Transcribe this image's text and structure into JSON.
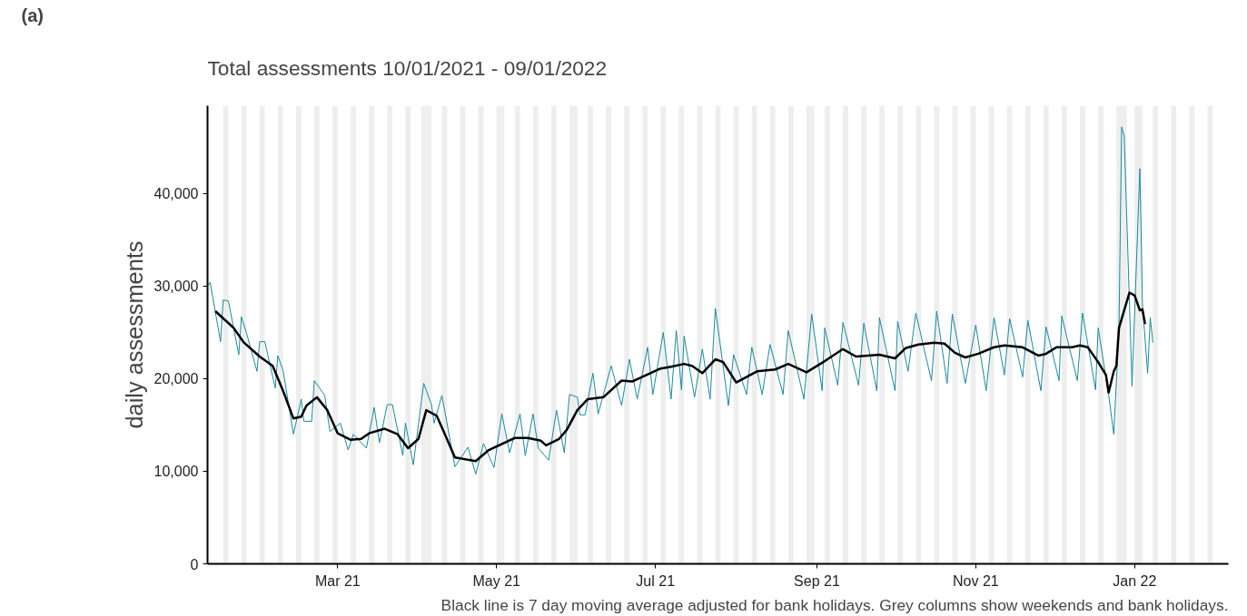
{
  "chart_data": {
    "type": "line",
    "title": "Total assessments 10/01/2021 - 09/01/2022",
    "ylabel": "daily assessments",
    "annotations": [
      "(a)",
      "Black line is 7 day moving average adjusted for bank holidays. Grey columns show weekends and bank holidays."
    ],
    "xlim": [
      "2021-01-10",
      "2022-02-06"
    ],
    "xticks": [
      {
        "value": "2021-03-01",
        "label": "Mar 21"
      },
      {
        "value": "2021-05-01",
        "label": "May 21"
      },
      {
        "value": "2021-07-01",
        "label": "Jul 21"
      },
      {
        "value": "2021-09-01",
        "label": "Sep 21"
      },
      {
        "value": "2021-11-01",
        "label": "Nov 21"
      },
      {
        "value": "2022-01-01",
        "label": "Jan 22"
      }
    ],
    "ylim": [
      0,
      49500
    ],
    "yticks": [
      0,
      {
        "value": 10000,
        "label": "10,000"
      },
      {
        "value": 20000,
        "label": "20,000"
      },
      {
        "value": 30000,
        "label": "30,000"
      },
      {
        "value": 40000,
        "label": "40,000"
      }
    ],
    "grid": false,
    "series": [
      {
        "color": "#1a8a9c",
        "x": [
          "2021-01-10",
          "2021-01-11",
          "2021-01-15",
          "2021-01-16",
          "2021-01-18",
          "2021-01-22",
          "2021-01-23",
          "2021-01-25",
          "2021-01-29",
          "2021-01-30",
          "2021-02-01",
          "2021-02-05",
          "2021-02-06",
          "2021-02-08",
          "2021-02-12",
          "2021-02-15",
          "2021-02-16",
          "2021-02-19",
          "2021-02-20",
          "2021-02-24",
          "2021-02-26",
          "2021-03-02",
          "2021-03-05",
          "2021-03-07",
          "2021-03-12",
          "2021-03-15",
          "2021-03-17",
          "2021-03-20",
          "2021-03-22",
          "2021-03-26",
          "2021-03-27",
          "2021-03-30",
          "2021-04-03",
          "2021-04-06",
          "2021-04-07",
          "2021-04-10",
          "2021-04-15",
          "2021-04-20",
          "2021-04-23",
          "2021-04-26",
          "2021-04-30",
          "2021-05-03",
          "2021-05-06",
          "2021-05-10",
          "2021-05-12",
          "2021-05-15",
          "2021-05-17",
          "2021-05-21",
          "2021-05-24",
          "2021-05-27",
          "2021-05-29",
          "2021-06-01",
          "2021-06-02",
          "2021-06-04",
          "2021-06-07",
          "2021-06-09",
          "2021-06-14",
          "2021-06-18",
          "2021-06-21",
          "2021-06-24",
          "2021-06-28",
          "2021-06-30",
          "2021-07-04",
          "2021-07-07",
          "2021-07-09",
          "2021-07-11",
          "2021-07-12",
          "2021-07-16",
          "2021-07-19",
          "2021-07-22",
          "2021-07-24",
          "2021-07-29",
          "2021-07-31",
          "2021-08-05",
          "2021-08-07",
          "2021-08-11",
          "2021-08-14",
          "2021-08-19",
          "2021-08-21",
          "2021-08-27",
          "2021-08-30",
          "2021-09-03",
          "2021-09-04",
          "2021-09-09",
          "2021-09-11",
          "2021-09-17",
          "2021-09-19",
          "2021-09-24",
          "2021-09-25",
          "2021-10-01",
          "2021-10-02",
          "2021-10-06",
          "2021-10-09",
          "2021-10-12",
          "2021-10-15",
          "2021-10-17",
          "2021-10-21",
          "2021-10-23",
          "2021-10-28",
          "2021-11-01",
          "2021-11-05",
          "2021-11-08",
          "2021-11-12",
          "2021-11-14",
          "2021-11-19",
          "2021-11-21",
          "2021-11-26",
          "2021-11-28",
          "2021-12-03",
          "2021-12-04",
          "2021-12-10",
          "2021-12-12",
          "2021-12-17",
          "2021-12-18",
          "2021-12-22",
          "2021-12-24",
          "2021-12-26",
          "2021-12-27",
          "2021-12-28",
          "2021-12-31",
          "2022-01-03",
          "2022-01-04",
          "2022-01-06",
          "2022-01-07",
          "2022-01-08"
        ],
        "values": [
          30000,
          30400,
          24000,
          28500,
          28400,
          22600,
          26700,
          24900,
          20800,
          24000,
          24000,
          19000,
          22500,
          20900,
          14000,
          17800,
          15400,
          15400,
          19800,
          18200,
          14300,
          15200,
          12300,
          14000,
          12500,
          16900,
          13100,
          17200,
          17200,
          11700,
          15200,
          10700,
          19500,
          17200,
          15200,
          18200,
          10500,
          12600,
          9700,
          13000,
          10400,
          16200,
          12000,
          16200,
          11700,
          16200,
          12500,
          11200,
          16600,
          12000,
          18300,
          18000,
          16100,
          16100,
          20600,
          16200,
          21400,
          17100,
          22100,
          17800,
          23400,
          18300,
          25000,
          17800,
          25200,
          18800,
          24600,
          18000,
          23200,
          17800,
          27600,
          17100,
          22600,
          18300,
          23400,
          18300,
          23700,
          18300,
          25200,
          17800,
          27000,
          18700,
          25500,
          19300,
          26100,
          19300,
          26000,
          18700,
          26600,
          18700,
          26200,
          20800,
          27100,
          23400,
          19800,
          27300,
          19500,
          27000,
          19500,
          25800,
          18700,
          26600,
          20400,
          26500,
          20200,
          26300,
          18700,
          25600,
          19800,
          26800,
          19800,
          27100,
          18800,
          25500,
          18300,
          14000,
          25500,
          47200,
          46200,
          19200,
          42700,
          28100,
          20600,
          26600,
          23900
        ]
      },
      {
        "color": "#000000",
        "x": [
          "2021-01-13",
          "2021-01-20",
          "2021-01-24",
          "2021-01-30",
          "2021-02-04",
          "2021-02-08",
          "2021-02-12",
          "2021-02-15",
          "2021-02-17",
          "2021-02-21",
          "2021-02-25",
          "2021-03-01",
          "2021-03-06",
          "2021-03-10",
          "2021-03-13",
          "2021-03-19",
          "2021-03-24",
          "2021-03-28",
          "2021-04-01",
          "2021-04-04",
          "2021-04-08",
          "2021-04-11",
          "2021-04-15",
          "2021-04-23",
          "2021-04-28",
          "2021-05-08",
          "2021-05-13",
          "2021-05-18",
          "2021-05-20",
          "2021-05-25",
          "2021-05-28",
          "2021-06-01",
          "2021-06-05",
          "2021-06-11",
          "2021-06-18",
          "2021-06-22",
          "2021-06-26",
          "2021-07-03",
          "2021-07-07",
          "2021-07-12",
          "2021-07-15",
          "2021-07-19",
          "2021-07-24",
          "2021-07-27",
          "2021-08-01",
          "2021-08-09",
          "2021-08-16",
          "2021-08-21",
          "2021-08-28",
          "2021-09-04",
          "2021-09-11",
          "2021-09-16",
          "2021-09-25",
          "2021-10-01",
          "2021-10-05",
          "2021-10-10",
          "2021-10-16",
          "2021-10-20",
          "2021-10-24",
          "2021-10-28",
          "2021-11-02",
          "2021-11-08",
          "2021-11-12",
          "2021-11-19",
          "2021-11-25",
          "2021-11-28",
          "2021-12-02",
          "2021-12-08",
          "2021-12-11",
          "2021-12-14",
          "2021-12-18",
          "2021-12-21",
          "2021-12-22",
          "2021-12-24",
          "2021-12-25",
          "2021-12-26",
          "2021-12-30",
          "2022-01-01",
          "2022-01-03",
          "2022-01-04",
          "2022-01-05"
        ],
        "values": [
          27300,
          25500,
          23900,
          22400,
          21400,
          18700,
          15700,
          15900,
          17100,
          18000,
          16600,
          14100,
          13400,
          13500,
          14100,
          14600,
          14000,
          12500,
          13500,
          16600,
          16000,
          14100,
          11500,
          11100,
          12300,
          13600,
          13600,
          13300,
          12800,
          13500,
          14500,
          16600,
          17800,
          18000,
          19800,
          19700,
          20200,
          21100,
          21300,
          21600,
          21400,
          20600,
          22100,
          21800,
          19600,
          20800,
          21000,
          21600,
          20700,
          21900,
          23200,
          22400,
          22600,
          22200,
          23300,
          23700,
          23900,
          23800,
          22800,
          22300,
          22700,
          23400,
          23600,
          23400,
          22500,
          22700,
          23400,
          23400,
          23600,
          23400,
          21800,
          20400,
          18500,
          20800,
          21400,
          25500,
          29300,
          29000,
          27400,
          27500,
          25900
        ]
      }
    ],
    "bands": [
      {
        "axis": "x",
        "from": "2021-01-16",
        "to": "2021-01-18",
        "color": "#e3e3e3"
      },
      {
        "axis": "x",
        "from": "2021-01-23",
        "to": "2021-01-25",
        "color": "#e3e3e3"
      },
      {
        "axis": "x",
        "from": "2021-01-30",
        "to": "2021-02-01",
        "color": "#e3e3e3"
      },
      {
        "axis": "x",
        "from": "2021-02-06",
        "to": "2021-02-08",
        "color": "#e3e3e3"
      },
      {
        "axis": "x",
        "from": "2021-02-13",
        "to": "2021-02-15",
        "color": "#e3e3e3"
      },
      {
        "axis": "x",
        "from": "2021-02-20",
        "to": "2021-02-22",
        "color": "#e3e3e3"
      },
      {
        "axis": "x",
        "from": "2021-02-27",
        "to": "2021-03-01",
        "color": "#e3e3e3"
      },
      {
        "axis": "x",
        "from": "2021-03-06",
        "to": "2021-03-08",
        "color": "#e3e3e3"
      },
      {
        "axis": "x",
        "from": "2021-03-13",
        "to": "2021-03-15",
        "color": "#e3e3e3"
      },
      {
        "axis": "x",
        "from": "2021-03-20",
        "to": "2021-03-22",
        "color": "#e3e3e3"
      },
      {
        "axis": "x",
        "from": "2021-03-27",
        "to": "2021-03-29",
        "color": "#e3e3e3"
      },
      {
        "axis": "x",
        "from": "2021-04-02",
        "to": "2021-04-03",
        "color": "#e3e3e3"
      },
      {
        "axis": "x",
        "from": "2021-04-03",
        "to": "2021-04-05",
        "color": "#e3e3e3"
      },
      {
        "axis": "x",
        "from": "2021-04-05",
        "to": "2021-04-06",
        "color": "#e3e3e3"
      },
      {
        "axis": "x",
        "from": "2021-04-10",
        "to": "2021-04-12",
        "color": "#e3e3e3"
      },
      {
        "axis": "x",
        "from": "2021-04-17",
        "to": "2021-04-19",
        "color": "#e3e3e3"
      },
      {
        "axis": "x",
        "from": "2021-04-24",
        "to": "2021-04-26",
        "color": "#e3e3e3"
      },
      {
        "axis": "x",
        "from": "2021-05-01",
        "to": "2021-05-03",
        "color": "#e3e3e3"
      },
      {
        "axis": "x",
        "from": "2021-05-03",
        "to": "2021-05-04",
        "color": "#e3e3e3"
      },
      {
        "axis": "x",
        "from": "2021-05-08",
        "to": "2021-05-10",
        "color": "#e3e3e3"
      },
      {
        "axis": "x",
        "from": "2021-05-15",
        "to": "2021-05-17",
        "color": "#e3e3e3"
      },
      {
        "axis": "x",
        "from": "2021-05-22",
        "to": "2021-05-24",
        "color": "#e3e3e3"
      },
      {
        "axis": "x",
        "from": "2021-05-29",
        "to": "2021-05-31",
        "color": "#e3e3e3"
      },
      {
        "axis": "x",
        "from": "2021-05-31",
        "to": "2021-06-01",
        "color": "#e3e3e3"
      },
      {
        "axis": "x",
        "from": "2021-06-05",
        "to": "2021-06-07",
        "color": "#e3e3e3"
      },
      {
        "axis": "x",
        "from": "2021-06-12",
        "to": "2021-06-14",
        "color": "#e3e3e3"
      },
      {
        "axis": "x",
        "from": "2021-06-19",
        "to": "2021-06-21",
        "color": "#e3e3e3"
      },
      {
        "axis": "x",
        "from": "2021-06-26",
        "to": "2021-06-28",
        "color": "#e3e3e3"
      },
      {
        "axis": "x",
        "from": "2021-07-03",
        "to": "2021-07-05",
        "color": "#e3e3e3"
      },
      {
        "axis": "x",
        "from": "2021-07-10",
        "to": "2021-07-12",
        "color": "#e3e3e3"
      },
      {
        "axis": "x",
        "from": "2021-07-17",
        "to": "2021-07-19",
        "color": "#e3e3e3"
      },
      {
        "axis": "x",
        "from": "2021-07-24",
        "to": "2021-07-26",
        "color": "#e3e3e3"
      },
      {
        "axis": "x",
        "from": "2021-07-31",
        "to": "2021-08-02",
        "color": "#e3e3e3"
      },
      {
        "axis": "x",
        "from": "2021-08-07",
        "to": "2021-08-09",
        "color": "#e3e3e3"
      },
      {
        "axis": "x",
        "from": "2021-08-14",
        "to": "2021-08-16",
        "color": "#e3e3e3"
      },
      {
        "axis": "x",
        "from": "2021-08-21",
        "to": "2021-08-23",
        "color": "#e3e3e3"
      },
      {
        "axis": "x",
        "from": "2021-08-28",
        "to": "2021-08-30",
        "color": "#e3e3e3"
      },
      {
        "axis": "x",
        "from": "2021-08-30",
        "to": "2021-08-31",
        "color": "#e3e3e3"
      },
      {
        "axis": "x",
        "from": "2021-09-04",
        "to": "2021-09-06",
        "color": "#e3e3e3"
      },
      {
        "axis": "x",
        "from": "2021-09-11",
        "to": "2021-09-13",
        "color": "#e3e3e3"
      },
      {
        "axis": "x",
        "from": "2021-09-18",
        "to": "2021-09-20",
        "color": "#e3e3e3"
      },
      {
        "axis": "x",
        "from": "2021-09-25",
        "to": "2021-09-27",
        "color": "#e3e3e3"
      },
      {
        "axis": "x",
        "from": "2021-10-02",
        "to": "2021-10-04",
        "color": "#e3e3e3"
      },
      {
        "axis": "x",
        "from": "2021-10-09",
        "to": "2021-10-11",
        "color": "#e3e3e3"
      },
      {
        "axis": "x",
        "from": "2021-10-16",
        "to": "2021-10-18",
        "color": "#e3e3e3"
      },
      {
        "axis": "x",
        "from": "2021-10-23",
        "to": "2021-10-25",
        "color": "#e3e3e3"
      },
      {
        "axis": "x",
        "from": "2021-10-30",
        "to": "2021-11-01",
        "color": "#e3e3e3"
      },
      {
        "axis": "x",
        "from": "2021-11-06",
        "to": "2021-11-08",
        "color": "#e3e3e3"
      },
      {
        "axis": "x",
        "from": "2021-11-13",
        "to": "2021-11-15",
        "color": "#e3e3e3"
      },
      {
        "axis": "x",
        "from": "2021-11-20",
        "to": "2021-11-22",
        "color": "#e3e3e3"
      },
      {
        "axis": "x",
        "from": "2021-11-27",
        "to": "2021-11-29",
        "color": "#e3e3e3"
      },
      {
        "axis": "x",
        "from": "2021-12-04",
        "to": "2021-12-06",
        "color": "#e3e3e3"
      },
      {
        "axis": "x",
        "from": "2021-12-11",
        "to": "2021-12-13",
        "color": "#e3e3e3"
      },
      {
        "axis": "x",
        "from": "2021-12-18",
        "to": "2021-12-20",
        "color": "#e3e3e3"
      },
      {
        "axis": "x",
        "from": "2021-12-25",
        "to": "2021-12-27",
        "color": "#e3e3e3"
      },
      {
        "axis": "x",
        "from": "2021-12-27",
        "to": "2021-12-29",
        "color": "#e3e3e3"
      },
      {
        "axis": "x",
        "from": "2022-01-01",
        "to": "2022-01-03",
        "color": "#e3e3e3"
      },
      {
        "axis": "x",
        "from": "2022-01-03",
        "to": "2022-01-04",
        "color": "#e3e3e3"
      },
      {
        "axis": "x",
        "from": "2022-01-08",
        "to": "2022-01-10",
        "color": "#e3e3e3"
      },
      {
        "axis": "x",
        "from": "2022-01-15",
        "to": "2022-01-17",
        "color": "#e3e3e3"
      },
      {
        "axis": "x",
        "from": "2022-01-22",
        "to": "2022-01-24",
        "color": "#e3e3e3"
      },
      {
        "axis": "x",
        "from": "2022-01-29",
        "to": "2022-01-31",
        "color": "#e3e3e3"
      }
    ]
  }
}
